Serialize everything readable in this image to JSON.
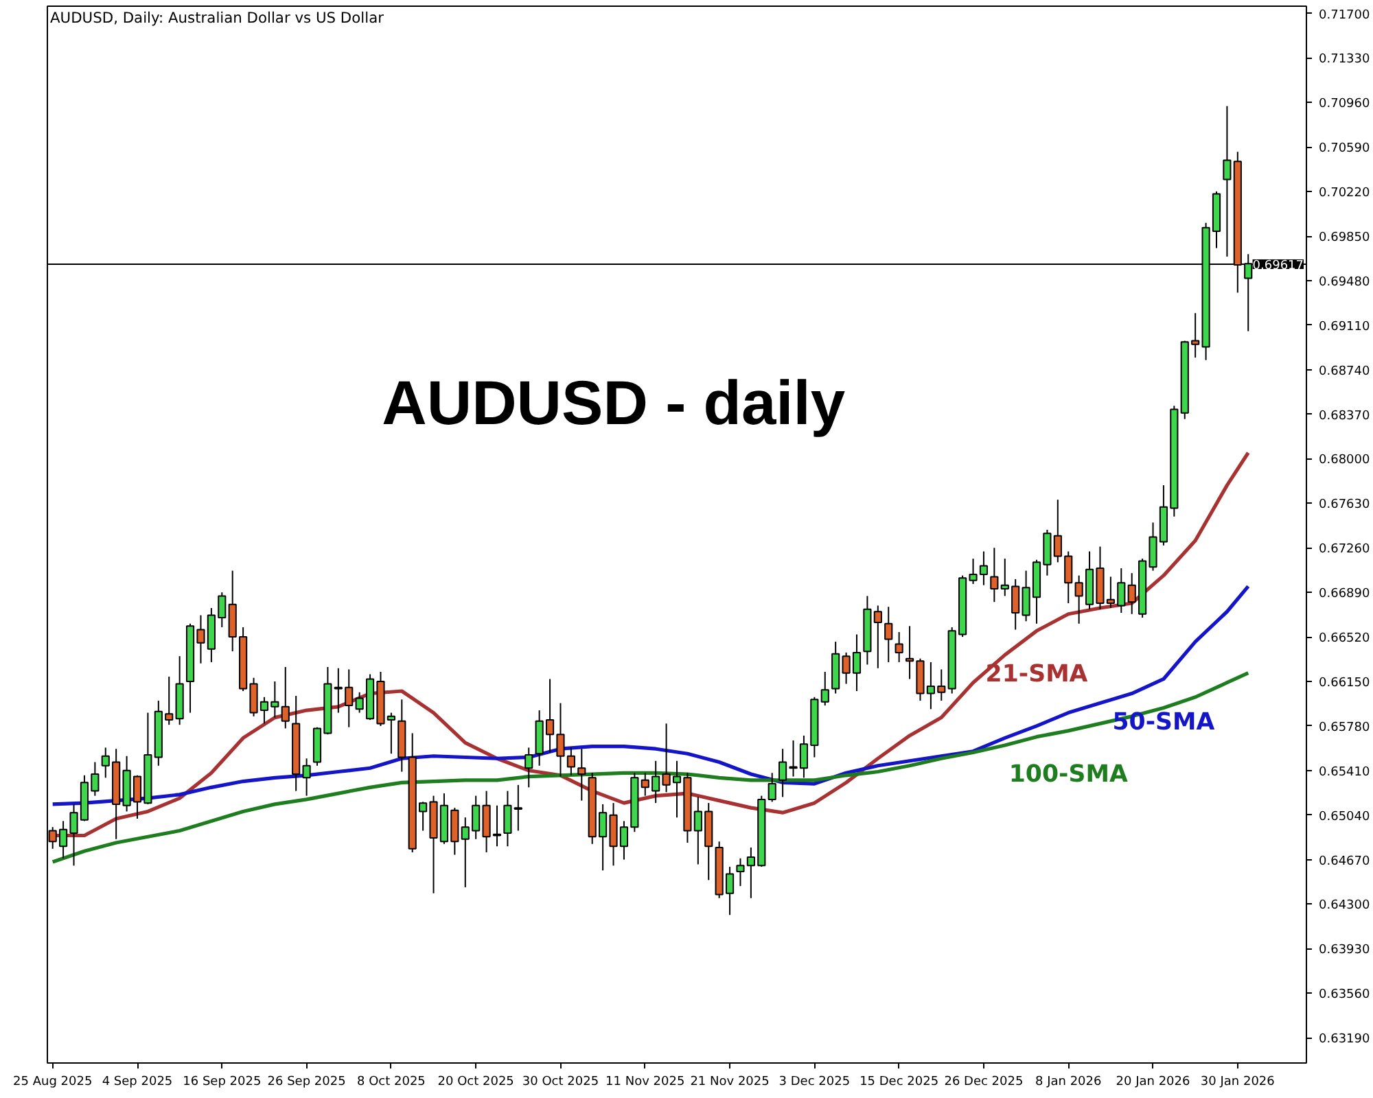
{
  "chart_data": {
    "type": "candlestick",
    "title": "AUDUSD, Daily:  Australian Dollar vs US Dollar",
    "annotations": [
      "AUDUSD - daily"
    ],
    "categories": [
      "25 Aug 2025",
      null,
      null,
      null,
      null,
      null,
      null,
      null,
      "4 Sep 2025",
      null,
      null,
      null,
      null,
      null,
      null,
      null,
      "16 Sep 2025",
      null,
      null,
      null,
      null,
      null,
      null,
      null,
      "26 Sep 2025",
      null,
      null,
      null,
      null,
      null,
      null,
      null,
      "8 Oct 2025",
      null,
      null,
      null,
      null,
      null,
      null,
      null,
      "20 Oct 2025",
      null,
      null,
      null,
      null,
      null,
      null,
      null,
      "30 Oct 2025",
      null,
      null,
      null,
      null,
      null,
      null,
      null,
      "11 Nov 2025",
      null,
      null,
      null,
      null,
      null,
      null,
      null,
      "21 Nov 2025",
      null,
      null,
      null,
      null,
      null,
      null,
      null,
      "3 Dec 2025",
      null,
      null,
      null,
      null,
      null,
      null,
      null,
      "15 Dec 2025",
      null,
      null,
      null,
      null,
      null,
      null,
      null,
      "26 Dec 2025",
      null,
      null,
      null,
      null,
      null,
      null,
      null,
      "8 Jan 2026",
      null,
      null,
      null,
      null,
      null,
      null,
      null,
      "20 Jan 2026",
      null,
      null,
      null,
      null,
      null,
      null,
      null,
      "30 Jan 2026",
      null
    ],
    "ohlc": [
      [
        0.6491,
        0.6494,
        0.6476,
        0.6482
      ],
      [
        0.6478,
        0.6499,
        0.6468,
        0.6492
      ],
      [
        0.6489,
        0.6513,
        0.6462,
        0.6506
      ],
      [
        0.65,
        0.6537,
        0.6499,
        0.6531
      ],
      [
        0.6524,
        0.6548,
        0.652,
        0.6538
      ],
      [
        0.6545,
        0.656,
        0.6535,
        0.6553
      ],
      [
        0.6548,
        0.6559,
        0.6484,
        0.6513
      ],
      [
        0.6512,
        0.6553,
        0.6507,
        0.6541
      ],
      [
        0.6536,
        0.6537,
        0.6501,
        0.6515
      ],
      [
        0.6514,
        0.6589,
        0.6513,
        0.6554
      ],
      [
        0.6552,
        0.6599,
        0.6545,
        0.659
      ],
      [
        0.6588,
        0.6619,
        0.6579,
        0.6583
      ],
      [
        0.6584,
        0.6636,
        0.6579,
        0.6613
      ],
      [
        0.6615,
        0.6663,
        0.6589,
        0.6661
      ],
      [
        0.6658,
        0.667,
        0.663,
        0.6647
      ],
      [
        0.6642,
        0.6676,
        0.6631,
        0.667
      ],
      [
        0.6668,
        0.6689,
        0.666,
        0.6686
      ],
      [
        0.6679,
        0.6707,
        0.664,
        0.6652
      ],
      [
        0.6652,
        0.666,
        0.6607,
        0.6609
      ],
      [
        0.6613,
        0.6618,
        0.6586,
        0.6589
      ],
      [
        0.6591,
        0.6602,
        0.658,
        0.6598
      ],
      [
        0.6594,
        0.6615,
        0.6585,
        0.6598
      ],
      [
        0.6594,
        0.6627,
        0.6576,
        0.6582
      ],
      [
        0.658,
        0.6603,
        0.6524,
        0.6538
      ],
      [
        0.6535,
        0.6551,
        0.652,
        0.6545
      ],
      [
        0.6548,
        0.6577,
        0.6545,
        0.6576
      ],
      [
        0.6572,
        0.6627,
        0.6571,
        0.6613
      ],
      [
        0.661,
        0.6626,
        0.6589,
        0.6609
      ],
      [
        0.661,
        0.6625,
        0.6577,
        0.6595
      ],
      [
        0.6592,
        0.6606,
        0.6589,
        0.6601
      ],
      [
        0.6584,
        0.6621,
        0.6583,
        0.6617
      ],
      [
        0.6615,
        0.6623,
        0.6578,
        0.658
      ],
      [
        0.6583,
        0.6589,
        0.6555,
        0.6586
      ],
      [
        0.6582,
        0.66,
        0.654,
        0.6552
      ],
      [
        0.6552,
        0.6572,
        0.6473,
        0.6476
      ],
      [
        0.6507,
        0.6515,
        0.6491,
        0.6514
      ],
      [
        0.6515,
        0.652,
        0.6439,
        0.6485
      ],
      [
        0.6482,
        0.6522,
        0.648,
        0.6512
      ],
      [
        0.6508,
        0.651,
        0.6471,
        0.6482
      ],
      [
        0.6484,
        0.6502,
        0.6444,
        0.6494
      ],
      [
        0.6491,
        0.652,
        0.6484,
        0.6512
      ],
      [
        0.6512,
        0.6524,
        0.6473,
        0.6486
      ],
      [
        0.6488,
        0.6512,
        0.6478,
        0.6487
      ],
      [
        0.6489,
        0.6524,
        0.6478,
        0.6512
      ],
      [
        0.6509,
        0.6529,
        0.6491,
        0.651
      ],
      [
        0.6543,
        0.656,
        0.6527,
        0.6554
      ],
      [
        0.6555,
        0.6591,
        0.6545,
        0.6582
      ],
      [
        0.6583,
        0.6617,
        0.6556,
        0.6571
      ],
      [
        0.6571,
        0.6597,
        0.6536,
        0.6553
      ],
      [
        0.6553,
        0.656,
        0.6537,
        0.6544
      ],
      [
        0.6543,
        0.6559,
        0.6516,
        0.6538
      ],
      [
        0.6535,
        0.6539,
        0.648,
        0.6486
      ],
      [
        0.6486,
        0.6513,
        0.6458,
        0.6506
      ],
      [
        0.6504,
        0.6514,
        0.6462,
        0.6478
      ],
      [
        0.6478,
        0.6499,
        0.6467,
        0.6494
      ],
      [
        0.6494,
        0.6539,
        0.649,
        0.6535
      ],
      [
        0.6533,
        0.6539,
        0.652,
        0.6527
      ],
      [
        0.6524,
        0.6549,
        0.6514,
        0.6536
      ],
      [
        0.6538,
        0.658,
        0.6523,
        0.6529
      ],
      [
        0.6531,
        0.6549,
        0.6502,
        0.6536
      ],
      [
        0.6535,
        0.6539,
        0.6481,
        0.6491
      ],
      [
        0.6491,
        0.6519,
        0.6463,
        0.6507
      ],
      [
        0.6507,
        0.6514,
        0.645,
        0.6478
      ],
      [
        0.6477,
        0.6482,
        0.6435,
        0.6438
      ],
      [
        0.6439,
        0.6461,
        0.6421,
        0.6455
      ],
      [
        0.6457,
        0.6468,
        0.6445,
        0.6462
      ],
      [
        0.6462,
        0.6477,
        0.6435,
        0.6469
      ],
      [
        0.6462,
        0.652,
        0.6461,
        0.6517
      ],
      [
        0.6517,
        0.6539,
        0.6515,
        0.653
      ],
      [
        0.6533,
        0.6559,
        0.6519,
        0.6548
      ],
      [
        0.6543,
        0.6566,
        0.6536,
        0.6544
      ],
      [
        0.6543,
        0.657,
        0.6535,
        0.6563
      ],
      [
        0.6562,
        0.6602,
        0.6552,
        0.66
      ],
      [
        0.6598,
        0.6623,
        0.6595,
        0.6608
      ],
      [
        0.6609,
        0.6648,
        0.6605,
        0.6638
      ],
      [
        0.6636,
        0.6639,
        0.6613,
        0.6622
      ],
      [
        0.6622,
        0.6654,
        0.6607,
        0.6639
      ],
      [
        0.664,
        0.6686,
        0.6629,
        0.6675
      ],
      [
        0.6673,
        0.6678,
        0.6626,
        0.6664
      ],
      [
        0.6663,
        0.6677,
        0.6631,
        0.665
      ],
      [
        0.6646,
        0.6656,
        0.6631,
        0.6639
      ],
      [
        0.6634,
        0.6661,
        0.6617,
        0.6632
      ],
      [
        0.6632,
        0.6634,
        0.6599,
        0.6605
      ],
      [
        0.6605,
        0.6631,
        0.6592,
        0.6611
      ],
      [
        0.6611,
        0.6625,
        0.6599,
        0.6606
      ],
      [
        0.6609,
        0.666,
        0.6605,
        0.6657
      ],
      [
        0.6654,
        0.6703,
        0.6652,
        0.6701
      ],
      [
        0.6699,
        0.6717,
        0.6696,
        0.6704
      ],
      [
        0.6704,
        0.6723,
        0.6695,
        0.6711
      ],
      [
        0.6702,
        0.6726,
        0.6681,
        0.6692
      ],
      [
        0.6692,
        0.6717,
        0.6686,
        0.6695
      ],
      [
        0.6694,
        0.67,
        0.6658,
        0.6672
      ],
      [
        0.667,
        0.6707,
        0.6665,
        0.6693
      ],
      [
        0.6685,
        0.6716,
        0.6663,
        0.6714
      ],
      [
        0.6712,
        0.6741,
        0.6703,
        0.6738
      ],
      [
        0.6736,
        0.6766,
        0.6714,
        0.6719
      ],
      [
        0.6719,
        0.6723,
        0.668,
        0.6697
      ],
      [
        0.6697,
        0.6703,
        0.6663,
        0.6686
      ],
      [
        0.6679,
        0.6723,
        0.6675,
        0.6708
      ],
      [
        0.6709,
        0.6727,
        0.6675,
        0.668
      ],
      [
        0.6683,
        0.6702,
        0.6676,
        0.668
      ],
      [
        0.6678,
        0.6709,
        0.6672,
        0.6697
      ],
      [
        0.6695,
        0.6705,
        0.6671,
        0.6681
      ],
      [
        0.6671,
        0.6717,
        0.6668,
        0.6715
      ],
      [
        0.671,
        0.6747,
        0.6707,
        0.6735
      ],
      [
        0.6731,
        0.6778,
        0.6728,
        0.676
      ],
      [
        0.6759,
        0.6844,
        0.6752,
        0.6841
      ],
      [
        0.6838,
        0.6898,
        0.6833,
        0.6897
      ],
      [
        0.6898,
        0.6921,
        0.6884,
        0.6895
      ],
      [
        0.6893,
        0.6996,
        0.6882,
        0.6992
      ],
      [
        0.6989,
        0.7022,
        0.6975,
        0.702
      ],
      [
        0.7032,
        0.7093,
        0.6968,
        0.7048
      ],
      [
        0.7047,
        0.7055,
        0.6938,
        0.6961
      ],
      [
        0.695,
        0.697,
        0.6906,
        0.6962
      ]
    ],
    "colors": [
      "#e0622b",
      "#3dd64c",
      "#3dd64c",
      "#3dd64c",
      "#3dd64c",
      "#3dd64c",
      "#e0622b",
      "#3dd64c",
      "#e0622b",
      "#3dd64c",
      "#3dd64c",
      "#e0622b",
      "#3dd64c",
      "#3dd64c",
      "#e0622b",
      "#3dd64c",
      "#3dd64c",
      "#e0622b",
      "#e0622b",
      "#e0622b",
      "#3dd64c",
      "#3dd64c",
      "#e0622b",
      "#e0622b",
      "#3dd64c",
      "#3dd64c",
      "#3dd64c",
      "#e0622b",
      "#e0622b",
      "#3dd64c",
      "#3dd64c",
      "#e0622b",
      "#3dd64c",
      "#e0622b",
      "#e0622b",
      "#3dd64c",
      "#e0622b",
      "#3dd64c",
      "#e0622b",
      "#3dd64c",
      "#3dd64c",
      "#e0622b",
      "#e0622b",
      "#3dd64c",
      "#3dd64c",
      "#3dd64c",
      "#3dd64c",
      "#e0622b",
      "#e0622b",
      "#e0622b",
      "#e0622b",
      "#e0622b",
      "#3dd64c",
      "#e0622b",
      "#3dd64c",
      "#3dd64c",
      "#e0622b",
      "#3dd64c",
      "#e0622b",
      "#3dd64c",
      "#e0622b",
      "#3dd64c",
      "#e0622b",
      "#e0622b",
      "#3dd64c",
      "#3dd64c",
      "#3dd64c",
      "#3dd64c",
      "#3dd64c",
      "#3dd64c",
      "#3dd64c",
      "#3dd64c",
      "#3dd64c",
      "#3dd64c",
      "#3dd64c",
      "#e0622b",
      "#3dd64c",
      "#3dd64c",
      "#e0622b",
      "#e0622b",
      "#e0622b",
      "#e0622b",
      "#e0622b",
      "#3dd64c",
      "#e0622b",
      "#3dd64c",
      "#3dd64c",
      "#3dd64c",
      "#3dd64c",
      "#e0622b",
      "#3dd64c",
      "#e0622b",
      "#3dd64c",
      "#3dd64c",
      "#3dd64c",
      "#e0622b",
      "#e0622b",
      "#e0622b",
      "#3dd64c",
      "#e0622b",
      "#e0622b",
      "#3dd64c",
      "#e0622b",
      "#3dd64c",
      "#3dd64c",
      "#3dd64c",
      "#3dd64c",
      "#3dd64c",
      "#e0622b",
      "#3dd64c",
      "#3dd64c",
      "#3dd64c",
      "#e0622b",
      "#3dd64c"
    ],
    "series": [
      {
        "type": "line",
        "name": "21-SMA",
        "color": "#a83232",
        "values": [
          0.6487,
          null,
          null,
          0.6487,
          null,
          null,
          0.6501,
          null,
          null,
          0.6507,
          null,
          null,
          0.6518,
          null,
          null,
          0.6539,
          null,
          null,
          0.6568,
          null,
          null,
          0.6585,
          null,
          null,
          0.6591,
          null,
          null,
          0.6594,
          null,
          null,
          0.6605,
          null,
          null,
          0.6607,
          null,
          null,
          0.6589,
          null,
          null,
          0.6564,
          null,
          null,
          0.6551,
          null,
          null,
          0.6541,
          null,
          null,
          0.6537,
          null,
          null,
          0.6524,
          null,
          null,
          0.6514,
          null,
          null,
          0.652,
          null,
          null,
          0.6522,
          null,
          null,
          0.6516,
          null,
          null,
          0.651,
          null,
          null,
          0.6506,
          null,
          null,
          0.6514,
          null,
          null,
          0.6531,
          null,
          null,
          0.6551,
          null,
          null,
          0.657,
          null,
          null,
          0.6585,
          null,
          null,
          0.6614,
          null,
          null,
          0.6637,
          null,
          null,
          0.6657,
          null,
          null,
          0.6671,
          null,
          null,
          0.6676,
          null,
          null,
          0.668,
          null,
          null,
          0.6703,
          null,
          null,
          0.6732,
          null,
          null,
          0.6778,
          null,
          0.6805
        ]
      },
      {
        "type": "line",
        "name": "50-SMA",
        "color": "#1414c8",
        "values": [
          0.6513,
          null,
          null,
          0.6514,
          null,
          null,
          0.6516,
          null,
          null,
          0.6518,
          null,
          null,
          0.6521,
          null,
          null,
          0.6527,
          null,
          null,
          0.6532,
          null,
          null,
          0.6535,
          null,
          null,
          0.6537,
          null,
          null,
          0.654,
          null,
          null,
          0.6543,
          null,
          null,
          0.6551,
          null,
          null,
          0.6553,
          null,
          null,
          0.6552,
          null,
          null,
          0.6551,
          null,
          null,
          0.6552,
          null,
          null,
          0.6559,
          null,
          null,
          0.6561,
          null,
          null,
          0.6561,
          null,
          null,
          0.6559,
          null,
          null,
          0.6555,
          null,
          null,
          0.6548,
          null,
          null,
          0.6538,
          null,
          null,
          0.6531,
          null,
          null,
          0.653,
          null,
          null,
          0.6539,
          null,
          null,
          0.6545,
          null,
          null,
          0.6549,
          null,
          null,
          0.6553,
          null,
          null,
          0.6557,
          null,
          null,
          0.6568,
          null,
          null,
          0.6578,
          null,
          null,
          0.6589,
          null,
          null,
          0.6597,
          null,
          null,
          0.6605,
          null,
          null,
          0.6617,
          null,
          null,
          0.6648,
          null,
          null,
          0.6673,
          null,
          0.6694
        ]
      },
      {
        "type": "line",
        "name": "100-SMA",
        "color": "#1e7d1e",
        "values": [
          0.6465,
          null,
          null,
          0.6474,
          null,
          null,
          0.6481,
          null,
          null,
          0.6486,
          null,
          null,
          0.6491,
          null,
          null,
          0.6499,
          null,
          null,
          0.6507,
          null,
          null,
          0.6513,
          null,
          null,
          0.6517,
          null,
          null,
          0.6522,
          null,
          null,
          0.6527,
          null,
          null,
          0.6531,
          null,
          null,
          0.6532,
          null,
          null,
          0.6533,
          null,
          null,
          0.6533,
          null,
          null,
          0.6536,
          null,
          null,
          0.6537,
          null,
          null,
          0.6538,
          null,
          null,
          0.6539,
          null,
          null,
          0.6539,
          null,
          null,
          0.6538,
          null,
          null,
          0.6535,
          null,
          null,
          0.6533,
          null,
          null,
          0.6533,
          null,
          null,
          0.6533,
          null,
          null,
          0.6537,
          null,
          null,
          0.654,
          null,
          null,
          0.6545,
          null,
          null,
          0.6551,
          null,
          null,
          0.6556,
          null,
          null,
          0.6562,
          null,
          null,
          0.6569,
          null,
          null,
          0.6574,
          null,
          null,
          0.658,
          null,
          null,
          0.6586,
          null,
          null,
          0.6593,
          null,
          null,
          0.6602,
          null,
          null,
          0.6614,
          null,
          0.6622
        ]
      }
    ],
    "ref_lines": [
      {
        "axis": "y",
        "value": 0.69617,
        "label": "0.69617",
        "color": "#000000"
      }
    ],
    "ylim": [
      0.6298,
      0.7176
    ],
    "yticks": [
      {
        "value": 0.717,
        "label": "0.71700"
      },
      {
        "value": 0.7133,
        "label": "0.71330"
      },
      {
        "value": 0.7096,
        "label": "0.70960"
      },
      {
        "value": 0.7059,
        "label": "0.70590"
      },
      {
        "value": 0.7022,
        "label": "0.70220"
      },
      {
        "value": 0.6985,
        "label": "0.69850"
      },
      {
        "value": 0.6948,
        "label": "0.69480"
      },
      {
        "value": 0.6911,
        "label": "0.69110"
      },
      {
        "value": 0.6874,
        "label": "0.68740"
      },
      {
        "value": 0.6837,
        "label": "0.68370"
      },
      {
        "value": 0.68,
        "label": "0.68000"
      },
      {
        "value": 0.6763,
        "label": "0.67630"
      },
      {
        "value": 0.6726,
        "label": "0.67260"
      },
      {
        "value": 0.6689,
        "label": "0.66890"
      },
      {
        "value": 0.6652,
        "label": "0.66520"
      },
      {
        "value": 0.6615,
        "label": "0.66150"
      },
      {
        "value": 0.6578,
        "label": "0.65780"
      },
      {
        "value": 0.6541,
        "label": "0.65410"
      },
      {
        "value": 0.6504,
        "label": "0.65040"
      },
      {
        "value": 0.6467,
        "label": "0.64670"
      },
      {
        "value": 0.643,
        "label": "0.64300"
      },
      {
        "value": 0.6393,
        "label": "0.63930"
      },
      {
        "value": 0.6356,
        "label": "0.63560"
      },
      {
        "value": 0.6319,
        "label": "0.63190"
      }
    ],
    "grid": false,
    "marker": "none"
  }
}
